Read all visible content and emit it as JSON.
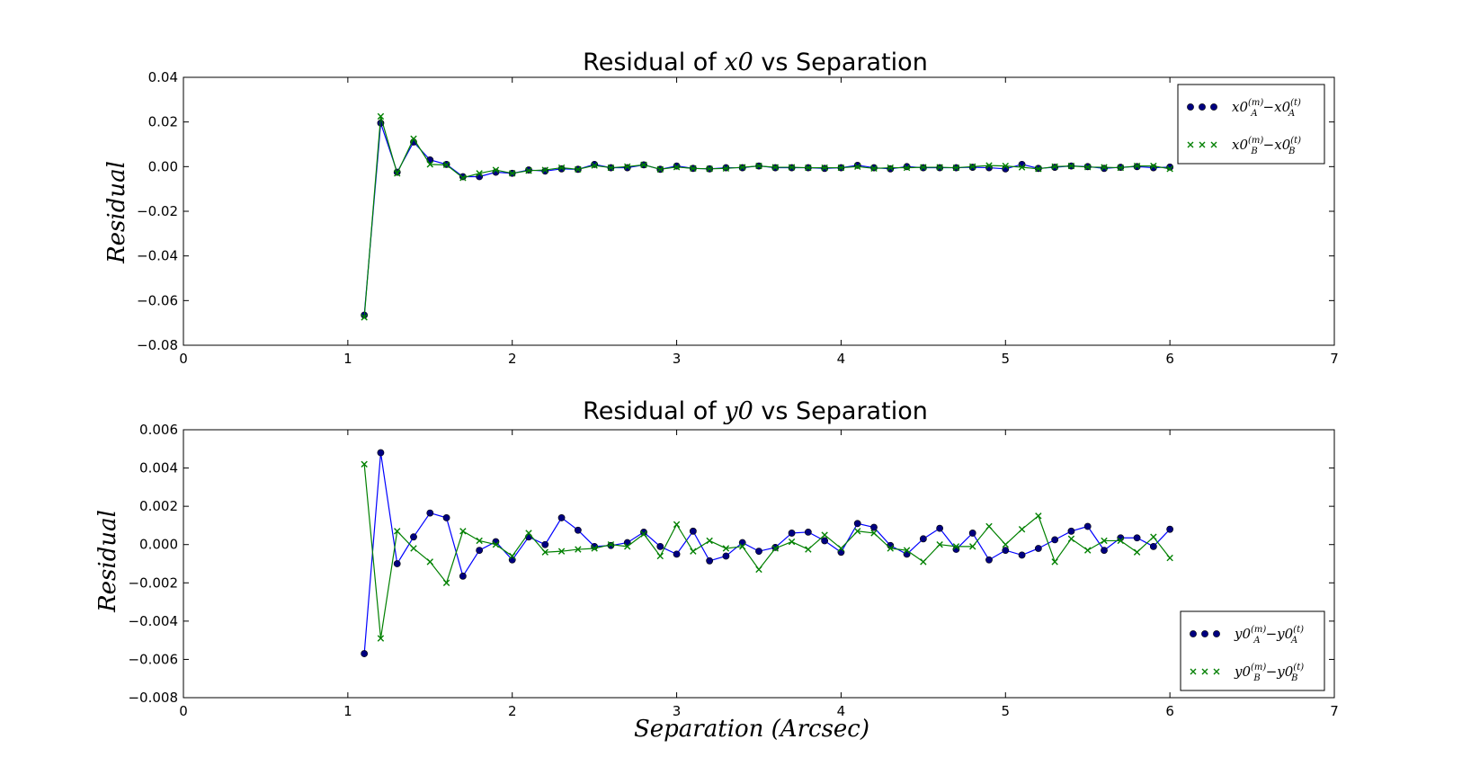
{
  "chart_data": [
    {
      "type": "line",
      "title_pre": "Residual of ",
      "title_math": "x0",
      "title_post": " vs Separation",
      "ylabel": "Residual",
      "xlabel": "",
      "xlim": [
        0,
        7
      ],
      "ylim": [
        -0.08,
        0.04
      ],
      "xticks": [
        "0",
        "1",
        "2",
        "3",
        "4",
        "5",
        "6",
        "7"
      ],
      "yticks": [
        "−0.08",
        "−0.06",
        "−0.04",
        "−0.02",
        "0.00",
        "0.02",
        "0.04"
      ],
      "ytick_values": [
        -0.08,
        -0.06,
        -0.04,
        -0.02,
        0.0,
        0.02,
        0.04
      ],
      "grid": false,
      "legend_position": "upper right",
      "x": [
        1.1,
        1.2,
        1.3,
        1.4,
        1.5,
        1.6,
        1.7,
        1.8,
        1.9,
        2.0,
        2.1,
        2.2,
        2.3,
        2.4,
        2.5,
        2.6,
        2.7,
        2.8,
        2.9,
        3.0,
        3.1,
        3.2,
        3.3,
        3.4,
        3.5,
        3.6,
        3.7,
        3.8,
        3.9,
        4.0,
        4.1,
        4.2,
        4.3,
        4.4,
        4.5,
        4.6,
        4.7,
        4.8,
        4.9,
        5.0,
        5.1,
        5.2,
        5.3,
        5.4,
        5.5,
        5.6,
        5.7,
        5.8,
        5.9,
        6.0
      ],
      "series": [
        {
          "legend_label": "x0A(m) − x0A(t)",
          "legend_base1": "x0",
          "legend_sub1": "A",
          "legend_sup1": "(m)",
          "legend_base2": "x0",
          "legend_sub2": "A",
          "legend_sup2": "(t)",
          "color": "#0000ff",
          "marker_color": "#000080",
          "marker": "circle",
          "values": [
            -0.0665,
            0.0195,
            -0.0025,
            0.011,
            0.003,
            0.001,
            -0.0045,
            -0.0045,
            -0.0025,
            -0.003,
            -0.0015,
            -0.002,
            -0.001,
            -0.0012,
            0.001,
            -0.0005,
            -0.0005,
            0.0008,
            -0.0012,
            0.0003,
            -0.0008,
            -0.001,
            -0.0005,
            -0.0005,
            0.0003,
            -0.0005,
            -0.0005,
            -0.0005,
            -0.0008,
            -0.0005,
            0.0006,
            -0.0005,
            -0.001,
            0.0,
            -0.0005,
            -0.0005,
            -0.0005,
            -0.0003,
            -0.0005,
            -0.001,
            0.001,
            -0.0008,
            -0.0003,
            0.0003,
            0.0,
            -0.0008,
            -0.0003,
            0.0,
            -0.0005,
            -0.0002
          ]
        },
        {
          "legend_label": "x0B(m) − x0B(t)",
          "legend_base1": "x0",
          "legend_sub1": "B",
          "legend_sup1": "(m)",
          "legend_base2": "x0",
          "legend_sub2": "B",
          "legend_sup2": "(t)",
          "color": "#008000",
          "marker_color": "#008000",
          "marker": "x",
          "values": [
            -0.0675,
            0.0225,
            -0.003,
            0.0125,
            0.001,
            0.0008,
            -0.005,
            -0.003,
            -0.0015,
            -0.003,
            -0.0018,
            -0.0015,
            -0.0005,
            -0.0012,
            0.0005,
            -0.0005,
            0.0,
            0.0008,
            -0.0012,
            -0.0002,
            -0.0008,
            -0.001,
            -0.0008,
            -0.0003,
            0.0003,
            -0.0003,
            -0.0003,
            -0.0005,
            -0.0005,
            -0.0005,
            0.0,
            -0.0008,
            -0.0005,
            -0.0005,
            -0.0003,
            -0.0003,
            -0.0005,
            0.0,
            0.0005,
            0.0003,
            -0.0003,
            -0.001,
            0.0,
            0.0003,
            -0.0002,
            -0.0003,
            -0.0005,
            0.0003,
            0.0003,
            -0.001
          ]
        }
      ]
    },
    {
      "type": "line",
      "title_pre": "Residual of ",
      "title_math": "y0",
      "title_post": " vs Separation",
      "ylabel": "Residual",
      "xlabel": "Separation (Arcsec)",
      "xlim": [
        0,
        7
      ],
      "ylim": [
        -0.008,
        0.006
      ],
      "xticks": [
        "0",
        "1",
        "2",
        "3",
        "4",
        "5",
        "6",
        "7"
      ],
      "yticks": [
        "−0.008",
        "−0.006",
        "−0.004",
        "−0.002",
        "0.000",
        "0.002",
        "0.004",
        "0.006"
      ],
      "ytick_values": [
        -0.008,
        -0.006,
        -0.004,
        -0.002,
        0.0,
        0.002,
        0.004,
        0.006
      ],
      "grid": false,
      "legend_position": "lower right",
      "x": [
        1.1,
        1.2,
        1.3,
        1.4,
        1.5,
        1.6,
        1.7,
        1.8,
        1.9,
        2.0,
        2.1,
        2.2,
        2.3,
        2.4,
        2.5,
        2.6,
        2.7,
        2.8,
        2.9,
        3.0,
        3.1,
        3.2,
        3.3,
        3.4,
        3.5,
        3.6,
        3.7,
        3.8,
        3.9,
        4.0,
        4.1,
        4.2,
        4.3,
        4.4,
        4.5,
        4.6,
        4.7,
        4.8,
        4.9,
        5.0,
        5.1,
        5.2,
        5.3,
        5.4,
        5.5,
        5.6,
        5.7,
        5.8,
        5.9,
        6.0
      ],
      "series": [
        {
          "legend_label": "y0A(m) − y0A(t)",
          "legend_base1": "y0",
          "legend_sub1": "A",
          "legend_sup1": "(m)",
          "legend_base2": "y0",
          "legend_sub2": "A",
          "legend_sup2": "(t)",
          "color": "#0000ff",
          "marker_color": "#000080",
          "marker": "circle",
          "values": [
            -0.0057,
            0.0048,
            -0.001,
            0.0004,
            0.00165,
            0.0014,
            -0.00165,
            -0.0003,
            0.00015,
            -0.0008,
            0.0004,
            0.0,
            0.0014,
            0.00075,
            -0.0001,
            -5e-05,
            0.0001,
            0.00065,
            -0.0001,
            -0.0005,
            0.0007,
            -0.00085,
            -0.0006,
            0.0001,
            -0.00035,
            -0.00015,
            0.0006,
            0.00065,
            0.0002,
            -0.0004,
            0.0011,
            0.0009,
            -5e-05,
            -0.0005,
            0.0003,
            0.00085,
            -0.00025,
            0.0006,
            -0.0008,
            -0.0003,
            -0.00055,
            -0.0002,
            0.00025,
            0.0007,
            0.00095,
            -0.0003,
            0.00035,
            0.00035,
            -0.0001,
            0.0008
          ]
        },
        {
          "legend_label": "y0B(m) − y0B(t)",
          "legend_base1": "y0",
          "legend_sub1": "B",
          "legend_sup1": "(m)",
          "legend_base2": "y0",
          "legend_sub2": "B",
          "legend_sup2": "(t)",
          "color": "#008000",
          "marker_color": "#008000",
          "marker": "x",
          "values": [
            0.0042,
            -0.0049,
            0.0007,
            -0.0002,
            -0.0009,
            -0.002,
            0.0007,
            0.0002,
            0.0,
            -0.0006,
            0.0006,
            -0.0004,
            -0.00035,
            -0.00025,
            -0.0002,
            0.0,
            -0.0001,
            0.00055,
            -0.0006,
            0.00105,
            -0.00035,
            0.0002,
            -0.0002,
            -0.0001,
            -0.0013,
            -0.0002,
            0.00015,
            -0.00025,
            0.0005,
            -0.0002,
            0.0007,
            0.0006,
            -0.0002,
            -0.0003,
            -0.0009,
            0.0,
            -0.0001,
            -0.0001,
            0.00095,
            0.0,
            0.0008,
            0.0015,
            -0.0009,
            0.0003,
            -0.0003,
            0.0002,
            0.0002,
            -0.0004,
            0.0004,
            -0.0007
          ]
        }
      ]
    }
  ]
}
